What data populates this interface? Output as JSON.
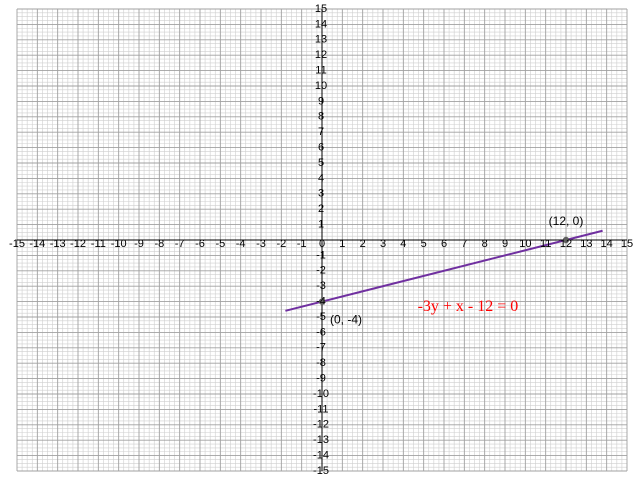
{
  "chart_data": {
    "type": "line",
    "title": "",
    "xlabel": "",
    "ylabel": "",
    "xlim": [
      -15,
      15
    ],
    "ylim": [
      -15,
      15
    ],
    "grid": true,
    "minor_divisions": 4,
    "x_ticks": [
      "-15",
      "-14",
      "-13",
      "-12",
      "-11",
      "-10",
      "-9",
      "-8",
      "-7",
      "-6",
      "-5",
      "-4",
      "-3",
      "-2",
      "-1",
      "0",
      "1",
      "2",
      "3",
      "4",
      "5",
      "6",
      "7",
      "8",
      "9",
      "10",
      "11",
      "12",
      "13",
      "14",
      "15"
    ],
    "y_ticks": [
      "15",
      "14",
      "13",
      "12",
      "11",
      "10",
      "9",
      "8",
      "7",
      "6",
      "5",
      "4",
      "3",
      "2",
      "1",
      "0",
      "-1",
      "-2",
      "-3",
      "-4",
      "-5",
      "-6",
      "-7",
      "-8",
      "-9",
      "-10",
      "-11",
      "-12",
      "-13",
      "-14",
      "-15"
    ],
    "series": [
      {
        "name": "-3y + x - 12 = 0",
        "color": "#7030a0",
        "x": [
          -1.8,
          13.8
        ],
        "y": [
          -4.6,
          0.6
        ]
      }
    ],
    "points": [
      {
        "x": 0,
        "y": -4,
        "label": "(0, -4)"
      },
      {
        "x": 12,
        "y": 0,
        "label": "(12, 0)"
      }
    ],
    "equation": {
      "text": "-3y + x - 12 = 0",
      "color": "#ff0000"
    },
    "colors": {
      "major_grid": "#a0a0a0",
      "minor_grid": "#cfcfcf",
      "axis": "#000000",
      "point": "#606060"
    }
  }
}
